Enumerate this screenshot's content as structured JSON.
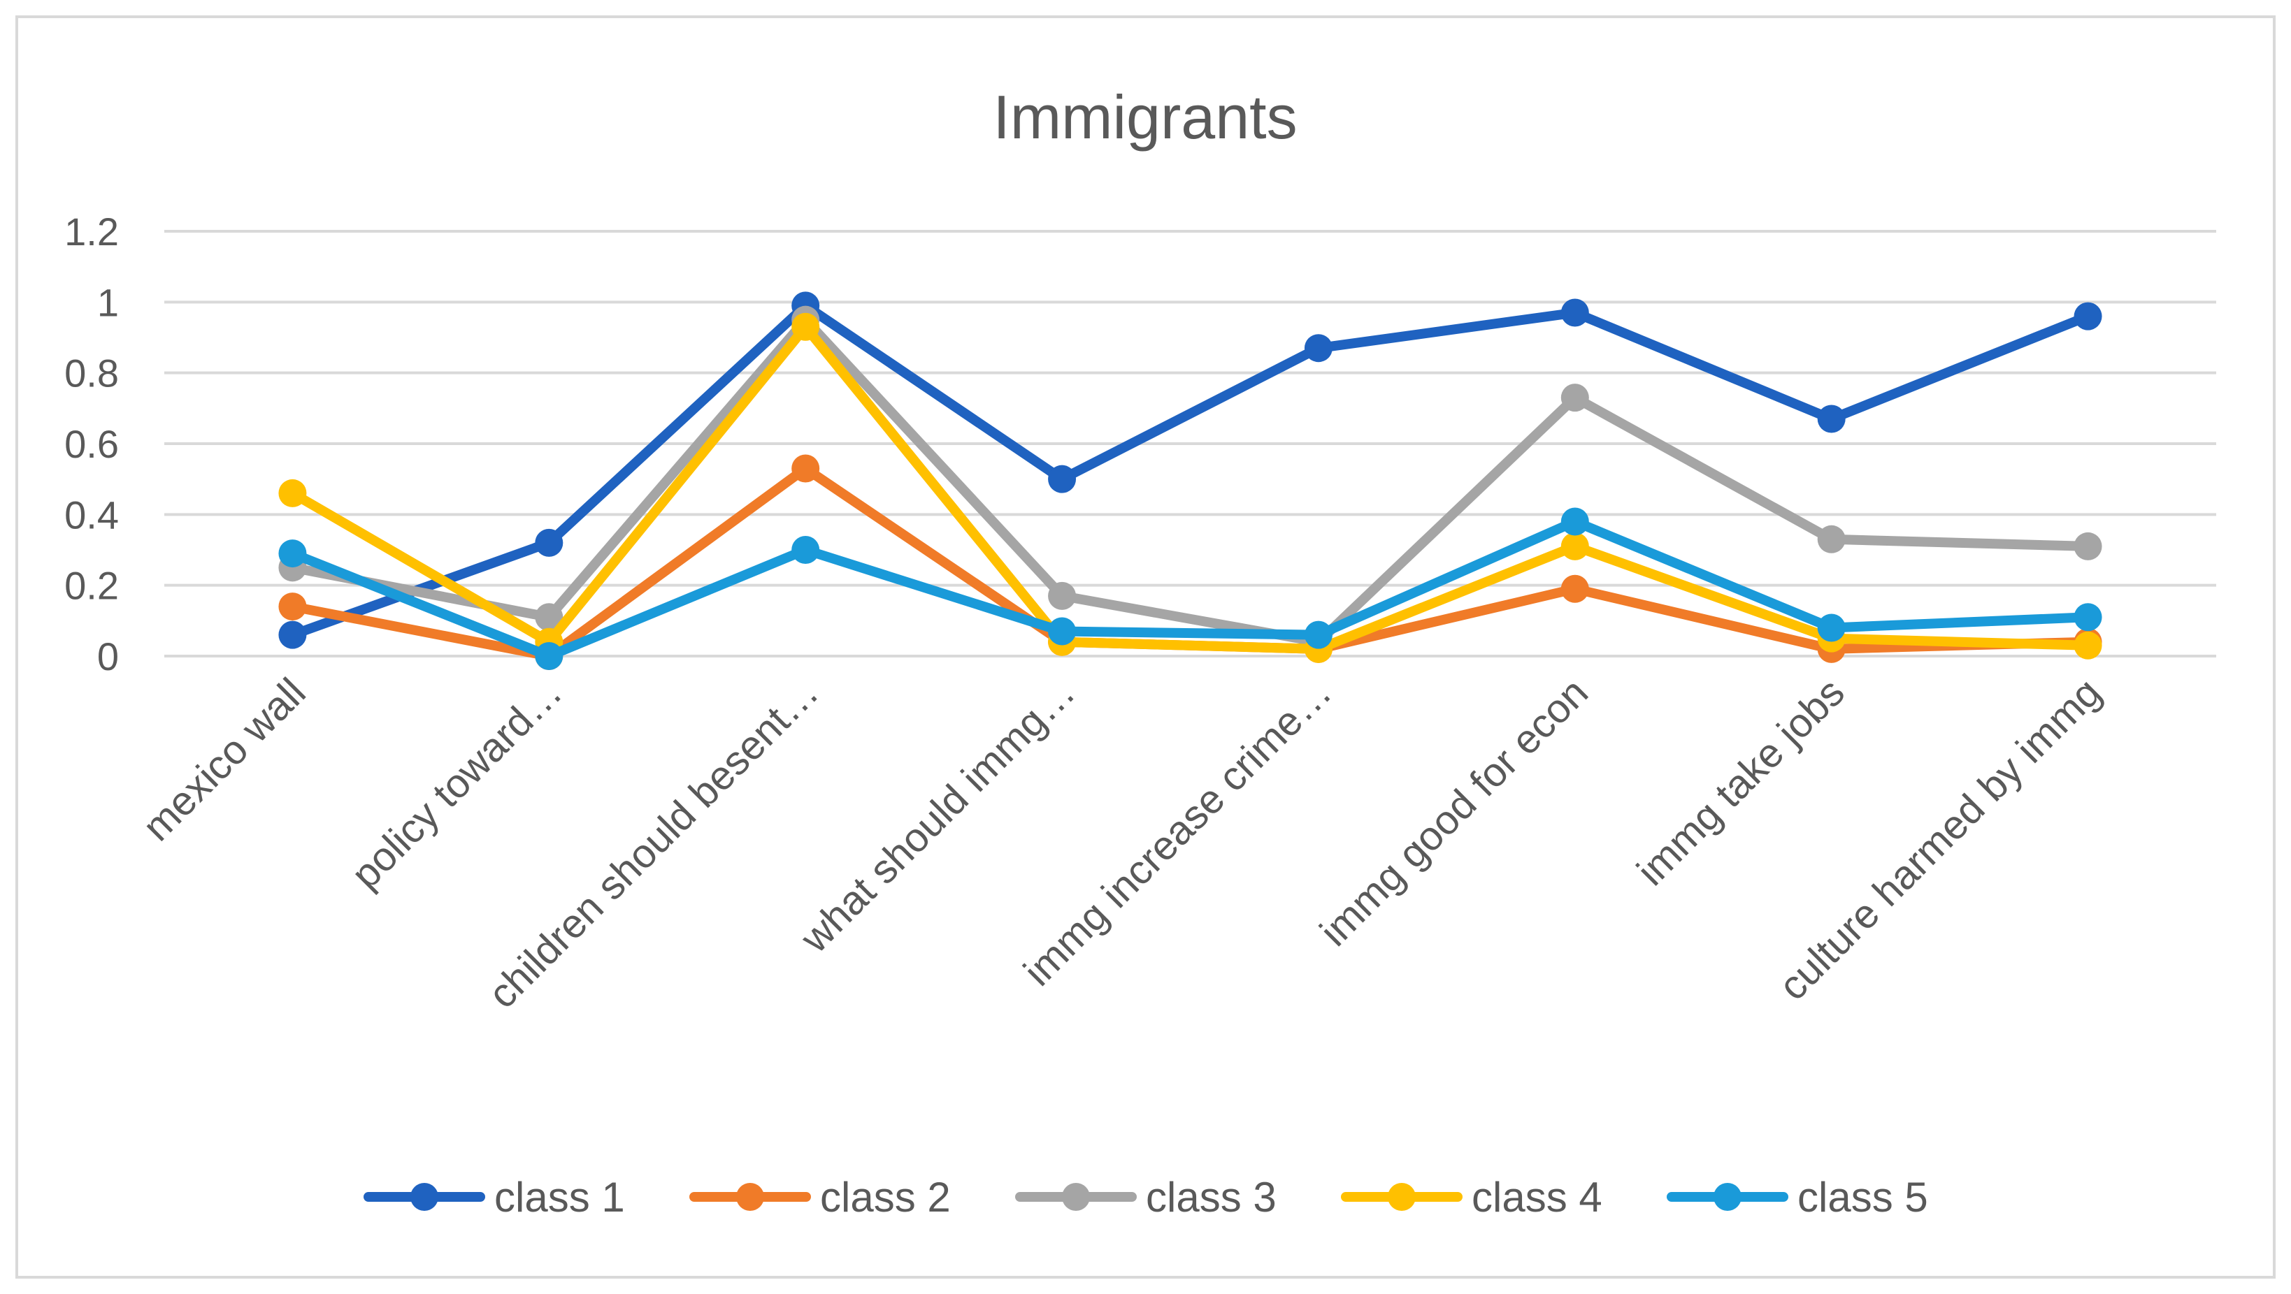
{
  "chart_data": {
    "type": "line",
    "title": "Immigrants",
    "xlabel": "",
    "ylabel": "",
    "ylim": [
      0,
      1.2
    ],
    "yticks": [
      "0",
      "0.2",
      "0.4",
      "0.6",
      "0.8",
      "1",
      "1.2"
    ],
    "grid": true,
    "legend_position": "bottom",
    "categories": [
      "mexico wall",
      "policy toward…",
      "children should besent…",
      "what should immg…",
      "immg increase crime…",
      "immg good for econ",
      "immg take jobs",
      "culture harmed by immg"
    ],
    "series": [
      {
        "name": "class 1",
        "color": "#1f62c0",
        "values": [
          0.06,
          0.32,
          0.99,
          0.5,
          0.87,
          0.97,
          0.67,
          0.96
        ]
      },
      {
        "name": "class 2",
        "color": "#f07b28",
        "values": [
          0.14,
          0.0,
          0.53,
          0.04,
          0.02,
          0.19,
          0.02,
          0.04
        ]
      },
      {
        "name": "class 3",
        "color": "#a5a5a5",
        "values": [
          0.25,
          0.11,
          0.95,
          0.17,
          0.04,
          0.73,
          0.33,
          0.31
        ]
      },
      {
        "name": "class 4",
        "color": "#ffc000",
        "values": [
          0.46,
          0.04,
          0.93,
          0.04,
          0.02,
          0.31,
          0.05,
          0.03
        ]
      },
      {
        "name": "class 5",
        "color": "#1a9ad9",
        "values": [
          0.29,
          0.0,
          0.3,
          0.07,
          0.06,
          0.38,
          0.08,
          0.11
        ]
      }
    ]
  }
}
